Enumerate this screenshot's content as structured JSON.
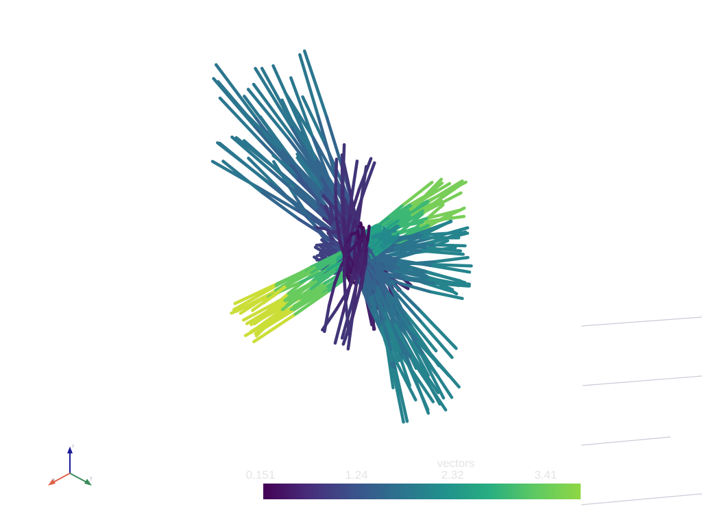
{
  "scalar_bar": {
    "title": "vectors",
    "ticks": [
      "0.151",
      "1.24",
      "2.32",
      "3.41"
    ],
    "colormap": [
      "#440154",
      "#472d7b",
      "#3b528b",
      "#2c728e",
      "#21918c",
      "#28ae80",
      "#5ec962",
      "#8fd744"
    ]
  },
  "streamline_colors": {
    "low": "#440154",
    "mid": "#21918c",
    "high": "#fde725"
  },
  "axes_widget": {
    "x_label": "x",
    "y_label": "y",
    "z_label": "z",
    "x_color": "#e0604a",
    "y_color": "#3a8a5a",
    "z_color": "#1a1a9a"
  }
}
